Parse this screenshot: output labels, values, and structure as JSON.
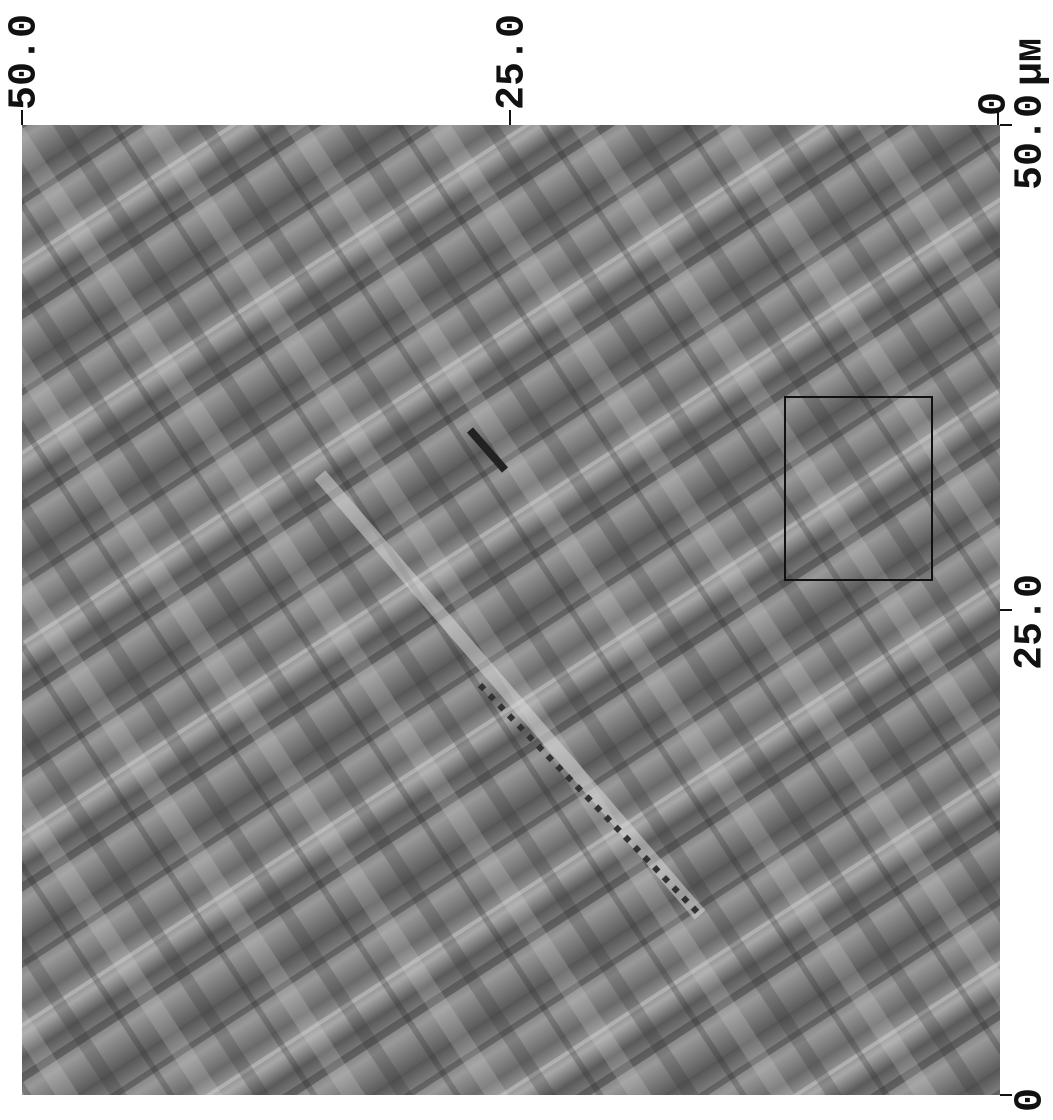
{
  "scan": {
    "top_axis": {
      "labels": [
        "50.0",
        "25.0",
        "0"
      ],
      "unit": "μм"
    },
    "right_axis": {
      "labels": [
        "50.0",
        "25.0",
        "0"
      ]
    }
  }
}
